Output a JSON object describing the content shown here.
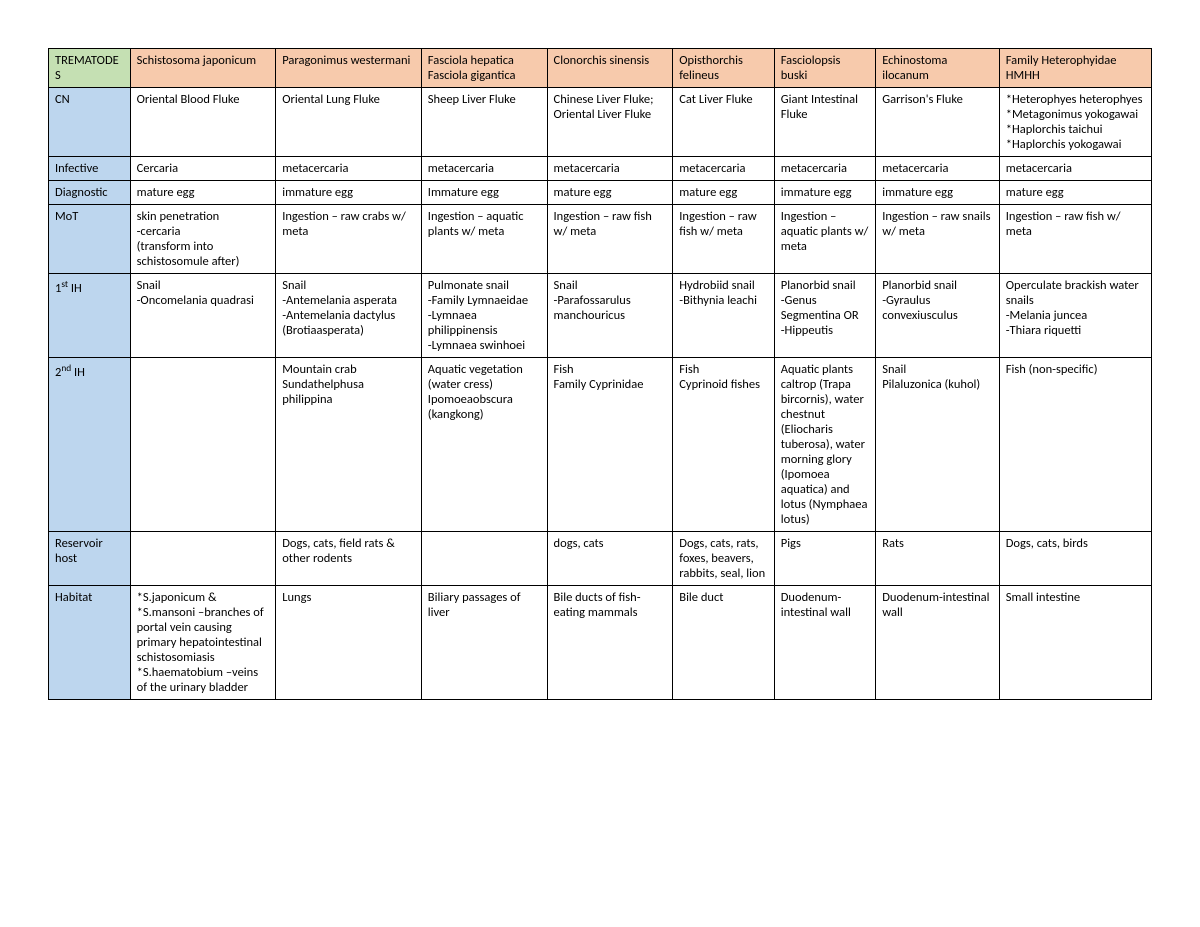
{
  "table": {
    "background_color": "#ffffff",
    "border_color": "#000000",
    "font_family": "Calibri",
    "font_size_pt": 9.5,
    "colors": {
      "corner_bg": "#c5e0b3",
      "col_header_bg": "#f7caac",
      "row_header_bg": "#bdd6ee",
      "cell_bg": "#ffffff",
      "text": "#000000"
    },
    "col_widths_pct": [
      7.4,
      13.2,
      13.2,
      11.4,
      11.4,
      9.2,
      9.2,
      11.2,
      13.8
    ],
    "corner": "TREMATODES",
    "columns": [
      "Schistosoma japonicum",
      "Paragonimus westermani",
      "Fasciola hepatica Fasciola gigantica",
      "Clonorchis sinensis",
      "Opisthorchis felineus",
      "Fasciolopsis buski",
      "Echinostoma ilocanum",
      "Family Heterophyidae HMHH"
    ],
    "rows": [
      {
        "label": "CN",
        "cells": [
          "Oriental Blood Fluke",
          "Oriental Lung  Fluke",
          "Sheep Liver Fluke",
          "Chinese Liver Fluke; Oriental Liver Fluke",
          "Cat Liver Fluke",
          "Giant Intestinal Fluke",
          "Garrison's Fluke",
          "*Heterophyes heterophyes\n*Metagonimus yokogawai\n*Haplorchis taichui\n*Haplorchis yokogawai"
        ]
      },
      {
        "label": "Infective",
        "cells": [
          "Cercaria",
          "metacercaria",
          "metacercaria",
          "metacercaria",
          "metacercaria",
          "metacercaria",
          "metacercaria",
          "metacercaria"
        ]
      },
      {
        "label": "Diagnostic",
        "cells": [
          "mature egg",
          "immature egg",
          "Immature egg",
          "mature egg",
          "mature egg",
          "immature egg",
          "immature egg",
          "mature egg"
        ]
      },
      {
        "label": "MoT",
        "cells": [
          "skin penetration\n-cercaria\n(transform into schistosomule after)",
          "Ingestion – raw crabs w/ meta",
          "Ingestion – aquatic plants w/ meta",
          "Ingestion – raw fish w/ meta",
          "Ingestion – raw fish w/ meta",
          "Ingestion – aquatic plants w/ meta",
          "Ingestion – raw snails w/ meta",
          "Ingestion – raw fish w/ meta"
        ]
      },
      {
        "label": "1st IH",
        "label_html": "1<sup>st</sup> IH",
        "cells": [
          "Snail\n-Oncomelania quadrasi",
          "Snail\n-Antemelania asperata\n-Antemelania dactylus (Brotiaasperata)",
          "Pulmonate snail\n-Family Lymnaeidae\n-Lymnaea philippinensis\n-Lymnaea swinhoei",
          "Snail\n-Parafossarulus manchouricus",
          "Hydrobiid snail\n-Bithynia leachi",
          "Planorbid snail\n-Genus Segmentina OR\n-Hippeutis",
          "Planorbid snail\n-Gyraulus convexiusculus",
          "Operculate brackish water snails\n-Melania juncea\n-Thiara riquetti"
        ]
      },
      {
        "label": "2nd IH",
        "label_html": "2<sup>nd</sup> IH",
        "cells": [
          "",
          "Mountain crab\nSundathelphusa philippina",
          "Aquatic vegetation (water cress) Ipomoeaobscura (kangkong)",
          "Fish\nFamily Cyprinidae",
          "Fish\nCyprinoid fishes",
          "Aquatic plants caltrop (Trapa bircornis), water chestnut (Eliocharis tuberosa), water morning glory (Ipomoea aquatica) and lotus (Nymphaea lotus)",
          "Snail\nPilaluzonica (kuhol)",
          "Fish (non-specific)"
        ]
      },
      {
        "label": "Reservoir host",
        "cells": [
          "",
          "Dogs, cats, field rats & other rodents",
          "",
          "dogs, cats",
          "Dogs, cats, rats, foxes, beavers, rabbits, seal, lion",
          "Pigs",
          "Rats",
          "Dogs, cats, birds"
        ]
      },
      {
        "label": "Habitat",
        "cells": [
          "*S.japonicum & *S.mansoni –branches of portal vein causing primary hepatointestinal schistosomiasis\n*S.haematobium –veins of the urinary bladder",
          "Lungs",
          "Biliary passages of liver",
          "Bile ducts of fish-eating mammals",
          "Bile duct",
          "Duodenum-intestinal wall",
          "Duodenum-intestinal wall",
          "Small intestine"
        ]
      }
    ]
  }
}
